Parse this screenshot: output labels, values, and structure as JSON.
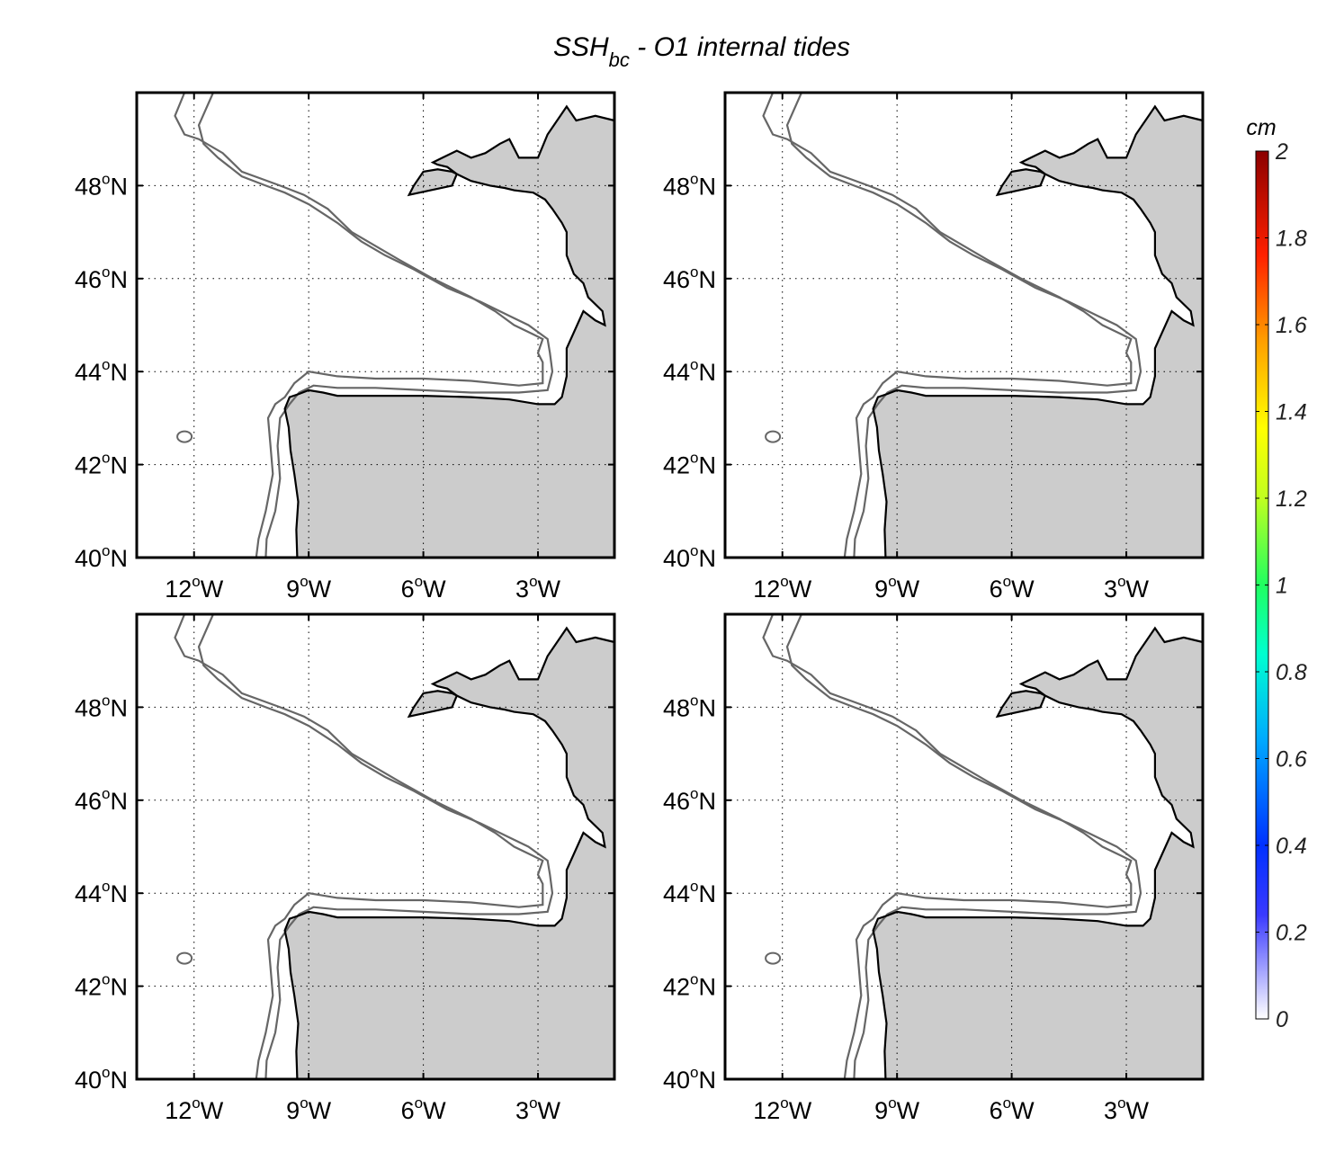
{
  "figure": {
    "title_main": "SSH",
    "title_sub": "bc",
    "title_rest": " - O1 internal tides"
  },
  "map": {
    "lon_range": [
      -13.5,
      -1.0
    ],
    "lat_range": [
      40,
      50
    ],
    "lon_ticks": [
      {
        "value": -12,
        "num": "12",
        "sup": "o",
        "hemi": "W"
      },
      {
        "value": -9,
        "num": "9",
        "sup": "o",
        "hemi": "W"
      },
      {
        "value": -6,
        "num": "6",
        "sup": "o",
        "hemi": "W"
      },
      {
        "value": -3,
        "num": "3",
        "sup": "o",
        "hemi": "W"
      }
    ],
    "lat_ticks": [
      {
        "value": 40,
        "num": "40",
        "sup": "o",
        "hemi": "N"
      },
      {
        "value": 42,
        "num": "42",
        "sup": "o",
        "hemi": "N"
      },
      {
        "value": 44,
        "num": "44",
        "sup": "o",
        "hemi": "N"
      },
      {
        "value": 46,
        "num": "46",
        "sup": "o",
        "hemi": "N"
      },
      {
        "value": 48,
        "num": "48",
        "sup": "o",
        "hemi": "N"
      }
    ],
    "grid": "dotted",
    "land_color": "#cccccc",
    "coast_color": "#000000",
    "isobath_color": "#666666",
    "panel_count": 4
  },
  "colorbar": {
    "unit": "cm",
    "ticks": [
      "0",
      "0.2",
      "0.4",
      "0.6",
      "0.8",
      "1",
      "1.2",
      "1.4",
      "1.6",
      "1.8",
      "2"
    ],
    "range": [
      0,
      2
    ],
    "colormap": [
      "#ffffff",
      "#0000ff",
      "#00ffff",
      "#00ff00",
      "#ffff00",
      "#ff8000",
      "#ff0000",
      "#8b0000"
    ]
  }
}
